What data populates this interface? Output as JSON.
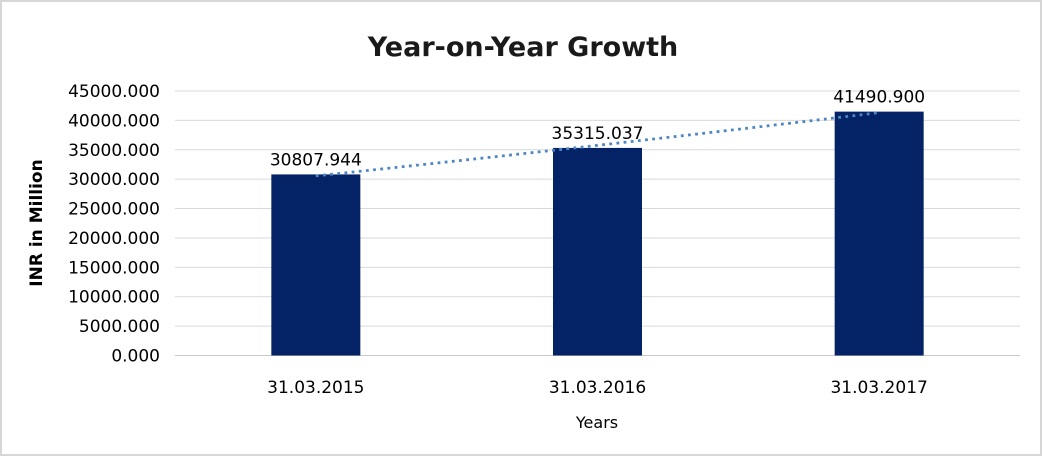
{
  "chart_data": {
    "type": "bar",
    "title": "Year-on-Year Growth",
    "xlabel": "Years",
    "ylabel": "INR in Million",
    "categories": [
      "31.03.2015",
      "31.03.2016",
      "31.03.2017"
    ],
    "values": [
      30807.944,
      35315.037,
      41490.9
    ],
    "value_labels": [
      "30807.944",
      "35315.037",
      "41490.900"
    ],
    "ylim": [
      0,
      45000
    ],
    "y_tick_step": 5000,
    "y_tick_labels": [
      "0.000",
      "5000.000",
      "10000.000",
      "15000.000",
      "20000.000",
      "25000.000",
      "30000.000",
      "35000.000",
      "40000.000",
      "45000.000"
    ],
    "grid": true,
    "legend_position": "none",
    "trendline": {
      "style": "dotted",
      "series": "linear-trend-over-bar-tops"
    },
    "colors": {
      "bar": "#032366",
      "trendline": "#4d86c3",
      "gridline": "#d9d9d9",
      "axis_line": "#c9c9c9",
      "text": "#000000",
      "title_text": "#1a1a1a",
      "border": "#d6d6d6",
      "background": "#ffffff"
    }
  }
}
